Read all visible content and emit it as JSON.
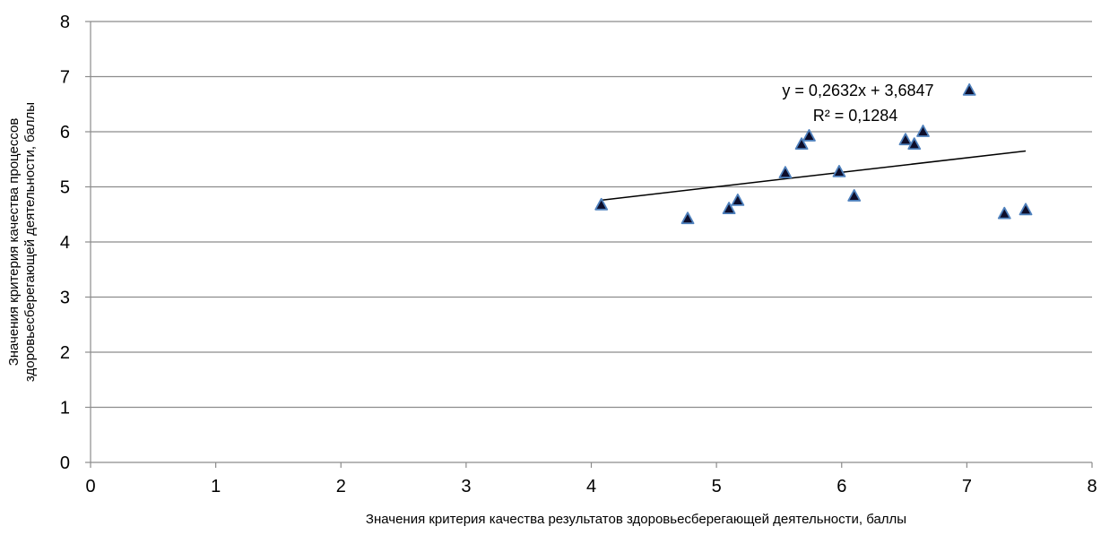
{
  "chart_data": {
    "type": "scatter",
    "xlabel": "Значения критерия  качества результатов здоровьесберегающей деятельности, баллы",
    "ylabel_lines": [
      "Значения критерия  качества процессов",
      "здоровьесберегающей деятельности, баллы"
    ],
    "xlim": [
      0,
      8
    ],
    "ylim": [
      0,
      8
    ],
    "x_ticks": [
      "0",
      "1",
      "2",
      "3",
      "4",
      "5",
      "6",
      "7",
      "8"
    ],
    "y_ticks": [
      "0",
      "1",
      "2",
      "3",
      "4",
      "5",
      "6",
      "7",
      "8"
    ],
    "grid": "horizontal",
    "marker": "triangle",
    "marker_fill": "#0d0d2a",
    "marker_stroke": "#4f81bd",
    "points": [
      {
        "x": 4.08,
        "y": 4.67
      },
      {
        "x": 4.77,
        "y": 4.42
      },
      {
        "x": 5.1,
        "y": 4.6
      },
      {
        "x": 5.17,
        "y": 4.75
      },
      {
        "x": 5.55,
        "y": 5.25
      },
      {
        "x": 5.68,
        "y": 5.77
      },
      {
        "x": 5.74,
        "y": 5.92
      },
      {
        "x": 5.98,
        "y": 5.27
      },
      {
        "x": 6.1,
        "y": 4.83
      },
      {
        "x": 6.51,
        "y": 5.85
      },
      {
        "x": 6.58,
        "y": 5.77
      },
      {
        "x": 6.65,
        "y": 6.0
      },
      {
        "x": 7.02,
        "y": 6.75
      },
      {
        "x": 7.3,
        "y": 4.51
      },
      {
        "x": 7.47,
        "y": 4.58
      }
    ],
    "trendline": {
      "slope": 0.2632,
      "intercept": 3.6847,
      "x_range": [
        4.08,
        7.47
      ],
      "equation": "y = 0,2632x + 3,6847",
      "r2": "R² = 0,1284"
    }
  }
}
